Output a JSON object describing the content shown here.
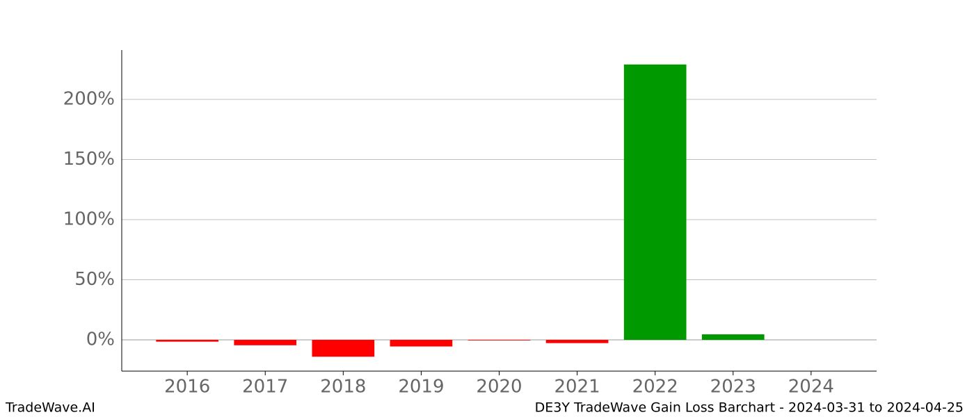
{
  "chart_data": {
    "type": "bar",
    "title": "DE3Y TradeWave Gain Loss Barchart - 2024-03-31 to 2024-04-25",
    "brand": "TradeWave.AI",
    "categories": [
      "2016",
      "2017",
      "2018",
      "2019",
      "2020",
      "2021",
      "2022",
      "2023",
      "2024"
    ],
    "values": [
      -1.5,
      -4.5,
      -14,
      -5.5,
      -0.5,
      -2.7,
      229,
      4.6,
      0
    ],
    "colors": [
      "#ff0000",
      "#ff0000",
      "#ff0000",
      "#ff0000",
      "#ff0000",
      "#ff0000",
      "#009900",
      "#009900",
      "#009900"
    ],
    "ylim": [
      -26,
      241
    ],
    "yticks": [
      {
        "value": 0,
        "label": "0%"
      },
      {
        "value": 50,
        "label": "50%"
      },
      {
        "value": 100,
        "label": "100%"
      },
      {
        "value": 150,
        "label": "150%"
      },
      {
        "value": 200,
        "label": "200%"
      }
    ],
    "grid": true
  }
}
